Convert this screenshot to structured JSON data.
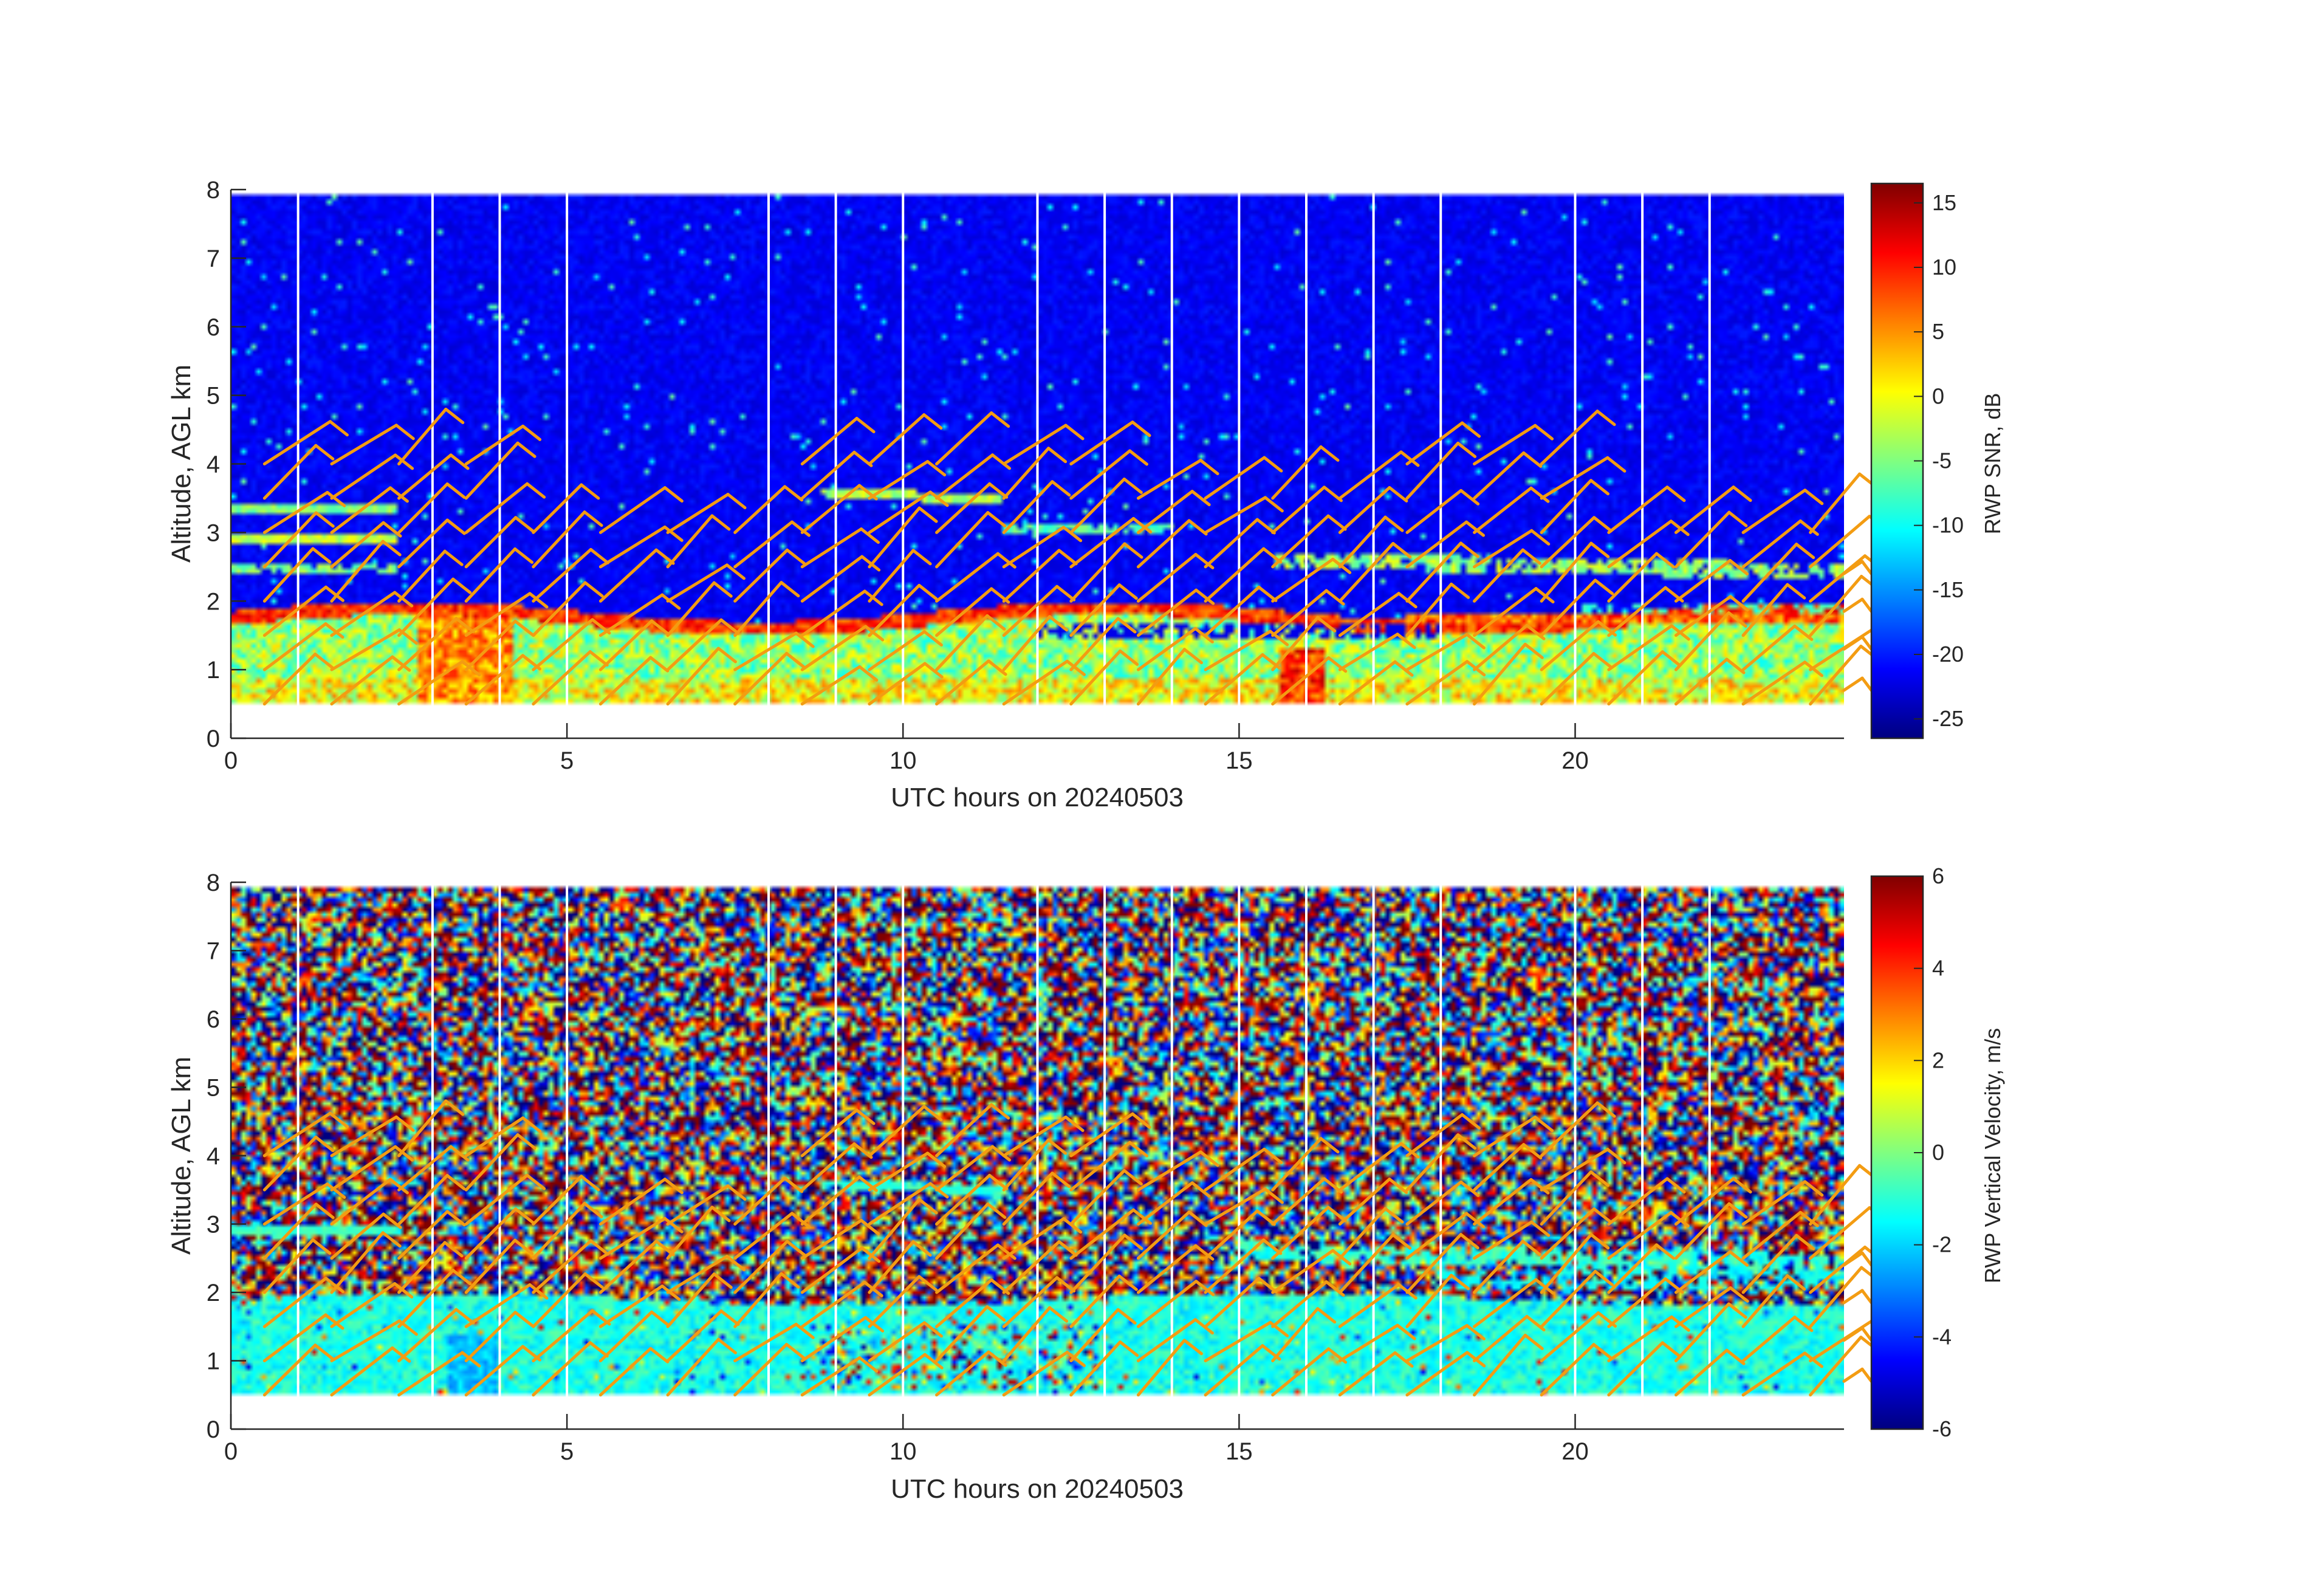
{
  "chart_data": [
    {
      "type": "heatmap",
      "xlabel": "UTC hours on 20240503",
      "ylabel": "Altitude, AGL km",
      "colorbar_label": "RWP SNR, dB",
      "colormap": "jet",
      "xlim": [
        0,
        24
      ],
      "ylim": [
        0,
        8
      ],
      "xticks": [
        0,
        5,
        10,
        15,
        20
      ],
      "yticks": [
        0,
        1,
        2,
        3,
        4,
        5,
        6,
        7,
        8
      ],
      "clim": [
        -26.5,
        16.5
      ],
      "cticks": [
        -25,
        -20,
        -15,
        -10,
        -5,
        0,
        5,
        10,
        15
      ],
      "data_altitude_range_km": [
        0.5,
        7.9
      ],
      "missing_profile_hours": [
        1,
        3,
        4,
        5,
        8,
        9,
        10,
        12,
        13,
        14,
        15,
        16,
        17,
        18,
        20,
        21,
        22
      ],
      "layers": [
        {
          "name": "",
          "altitude_km": 1.8,
          "value_db": 8
        },
        {
          "name": "",
          "altitude_km": 0.8,
          "value_db": 0
        }
      ],
      "wind_barbs": true
    },
    {
      "type": "heatmap",
      "xlabel": "UTC hours on 20240503",
      "ylabel": "Altitude, AGL km",
      "colorbar_label": "RWP Vertical Velocity, m/s",
      "colormap": "jet",
      "xlim": [
        0,
        24
      ],
      "ylim": [
        0,
        8
      ],
      "xticks": [
        0,
        5,
        10,
        15,
        20
      ],
      "yticks": [
        0,
        1,
        2,
        3,
        4,
        5,
        6,
        7,
        8
      ],
      "clim": [
        -6,
        6
      ],
      "cticks": [
        -6,
        -4,
        -2,
        0,
        2,
        4,
        6
      ],
      "data_altitude_range_km": [
        0.5,
        7.9
      ],
      "missing_profile_hours": [
        1,
        3,
        4,
        5,
        8,
        9,
        10,
        12,
        13,
        14,
        15,
        16,
        17,
        18,
        20,
        21,
        22
      ],
      "wind_barbs": true
    }
  ],
  "colors": {
    "barb": "#f39c12",
    "axis": "#262626",
    "gap": "#ffffff"
  }
}
